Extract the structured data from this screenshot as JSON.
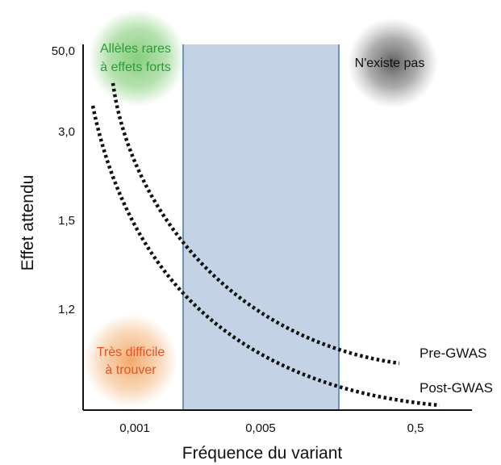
{
  "axes": {
    "xlabel": "Fréquence du variant",
    "ylabel": "Effet attendu",
    "x_ticks": [
      "0,001",
      "0,005",
      "0,5"
    ],
    "y_ticks": [
      "50,0",
      "3,0",
      "1,5",
      "1,2"
    ]
  },
  "regions": {
    "rare_strong": {
      "label_line1": "Allèles rares",
      "label_line2": "à effets forts",
      "color": "#7bc96f",
      "text_color": "#2e9a3a"
    },
    "not_exist": {
      "label": "N'existe pas",
      "color": "#6f6f6f",
      "text_color": "#111111"
    },
    "hard_to_find": {
      "label_line1": "Très difficile",
      "label_line2": "à trouver",
      "color": "#f0a05a",
      "text_color": "#e0562a"
    },
    "gwas_band_color": "#c3d2e4",
    "gwas_band_edge": "#6f93bf"
  },
  "curves": [
    {
      "name": "Pre-GWAS",
      "color": "#111111"
    },
    {
      "name": "Post-GWAS",
      "color": "#111111"
    }
  ]
}
